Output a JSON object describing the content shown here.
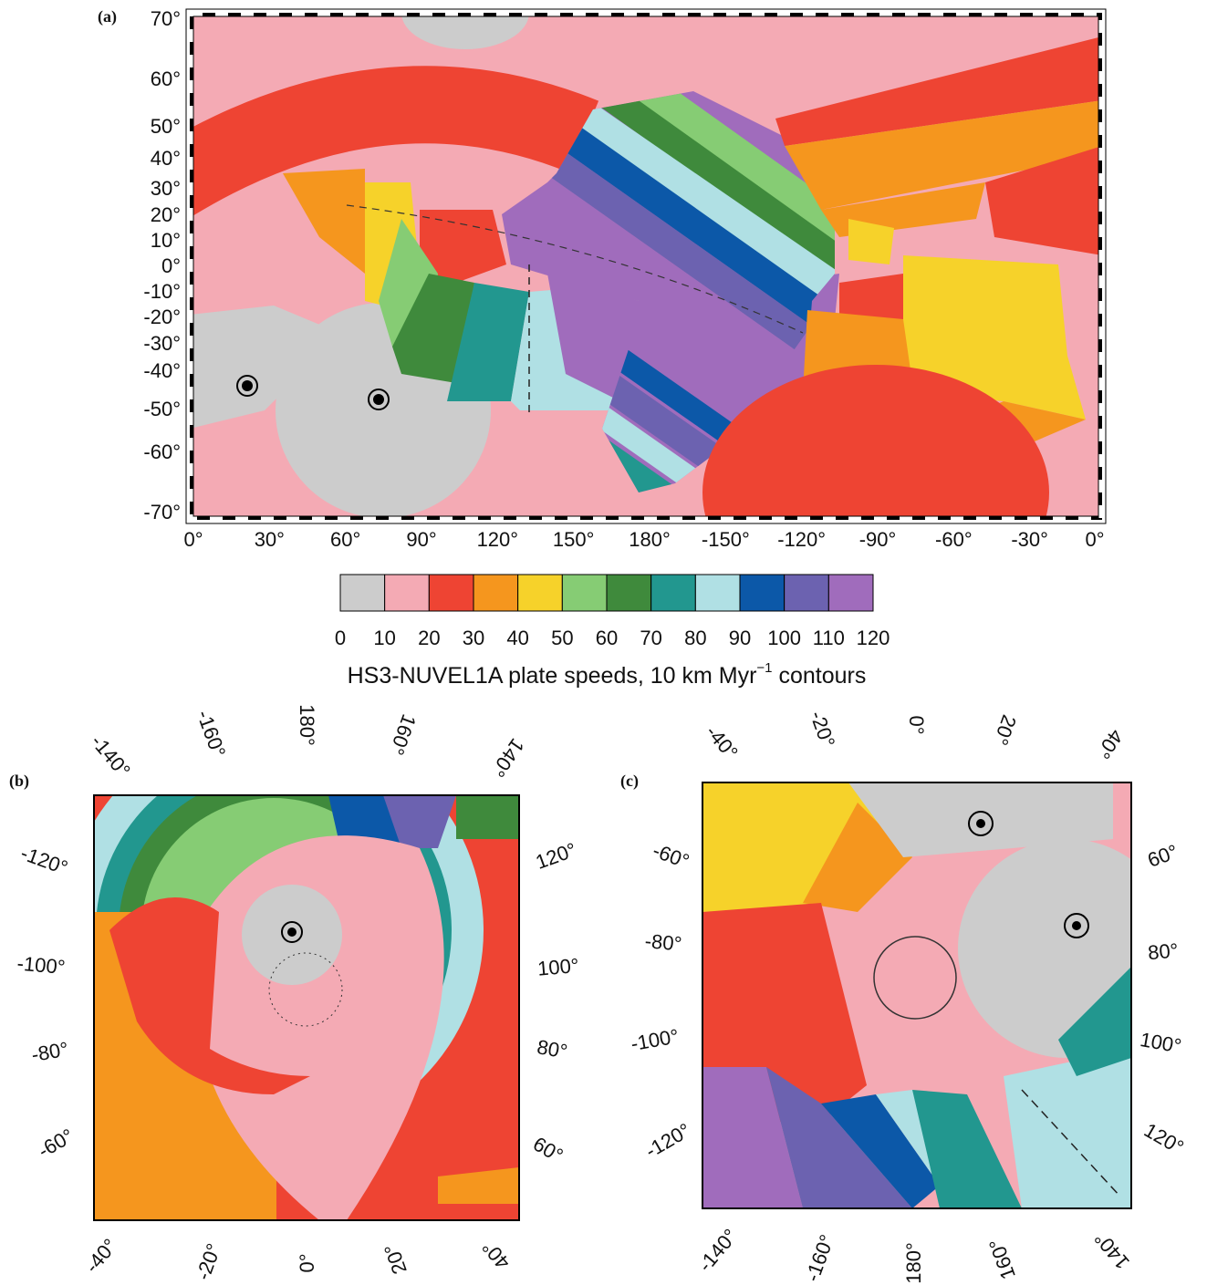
{
  "panel_a": {
    "label": "(a)",
    "lat_labels": [
      "70°",
      "60°",
      "50°",
      "40°",
      "30°",
      "20°",
      "10°",
      "0°",
      "-10°",
      "-20°",
      "-30°",
      "-40°",
      "-50°",
      "-60°",
      "-70°"
    ],
    "lon_labels": [
      "0°",
      "30°",
      "60°",
      "90°",
      "120°",
      "150°",
      "180°",
      "-150°",
      "-120°",
      "-90°",
      "-60°",
      "-30°",
      "0°"
    ]
  },
  "colorbar": {
    "colors": [
      "#cccccc",
      "#f4aab4",
      "#ee4433",
      "#f5961e",
      "#f6d22a",
      "#86cc74",
      "#3f8a3c",
      "#22978f",
      "#b0e0e4",
      "#0c58a8",
      "#6c62b0",
      "#a06cbc"
    ],
    "ticks": [
      0,
      10,
      20,
      30,
      40,
      50,
      60,
      70,
      80,
      90,
      100,
      110,
      120
    ],
    "title": "HS3-NUVEL1A plate speeds, 10 km Myr",
    "title_sup": "−1",
    "title_end": " contours"
  },
  "panel_b": {
    "label": "(b)",
    "top_labels": [
      "-140°",
      "-160°",
      "180°",
      "160°",
      "140°"
    ],
    "left_labels": [
      "-120°",
      "-100°",
      "-80°",
      "-60°"
    ],
    "right_labels": [
      "120°",
      "100°",
      "80°",
      "60°"
    ],
    "bottom_labels": [
      "-40°",
      "-20°",
      "0°",
      "20°",
      "40°"
    ]
  },
  "panel_c": {
    "label": "(c)",
    "top_labels": [
      "-40°",
      "-20°",
      "0°",
      "20°",
      "40°"
    ],
    "left_labels": [
      "-60°",
      "-80°",
      "-100°",
      "-120°"
    ],
    "right_labels": [
      "60°",
      "80°",
      "100°",
      "120°"
    ],
    "bottom_labels": [
      "-140°",
      "-160°",
      "180°",
      "160°",
      "140°"
    ]
  }
}
